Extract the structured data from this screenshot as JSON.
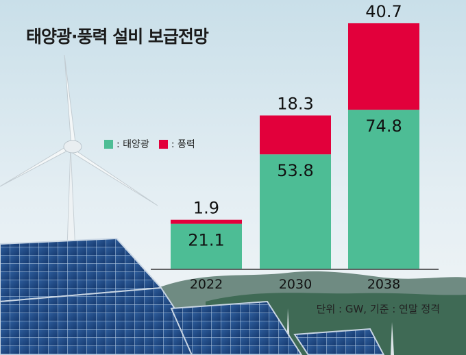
{
  "title": "태양광·풍력 설비 보급전망",
  "unit_note": "단위 : GW, 기준 : 연말 정격",
  "legend": [
    {
      "label": ": 태양광",
      "color": "#4dbd95"
    },
    {
      "label": ": 풍력",
      "color": "#e2003b"
    }
  ],
  "chart_data": {
    "type": "bar",
    "stacked": true,
    "categories": [
      "2022",
      "2030",
      "2038"
    ],
    "series": [
      {
        "name": "태양광",
        "values": [
          21.1,
          53.8,
          74.8
        ],
        "color": "#4dbd95"
      },
      {
        "name": "풍력",
        "values": [
          1.9,
          18.3,
          40.7
        ],
        "color": "#e2003b"
      }
    ],
    "ylim": [
      0,
      120
    ],
    "xlabel": "",
    "ylabel": ""
  }
}
